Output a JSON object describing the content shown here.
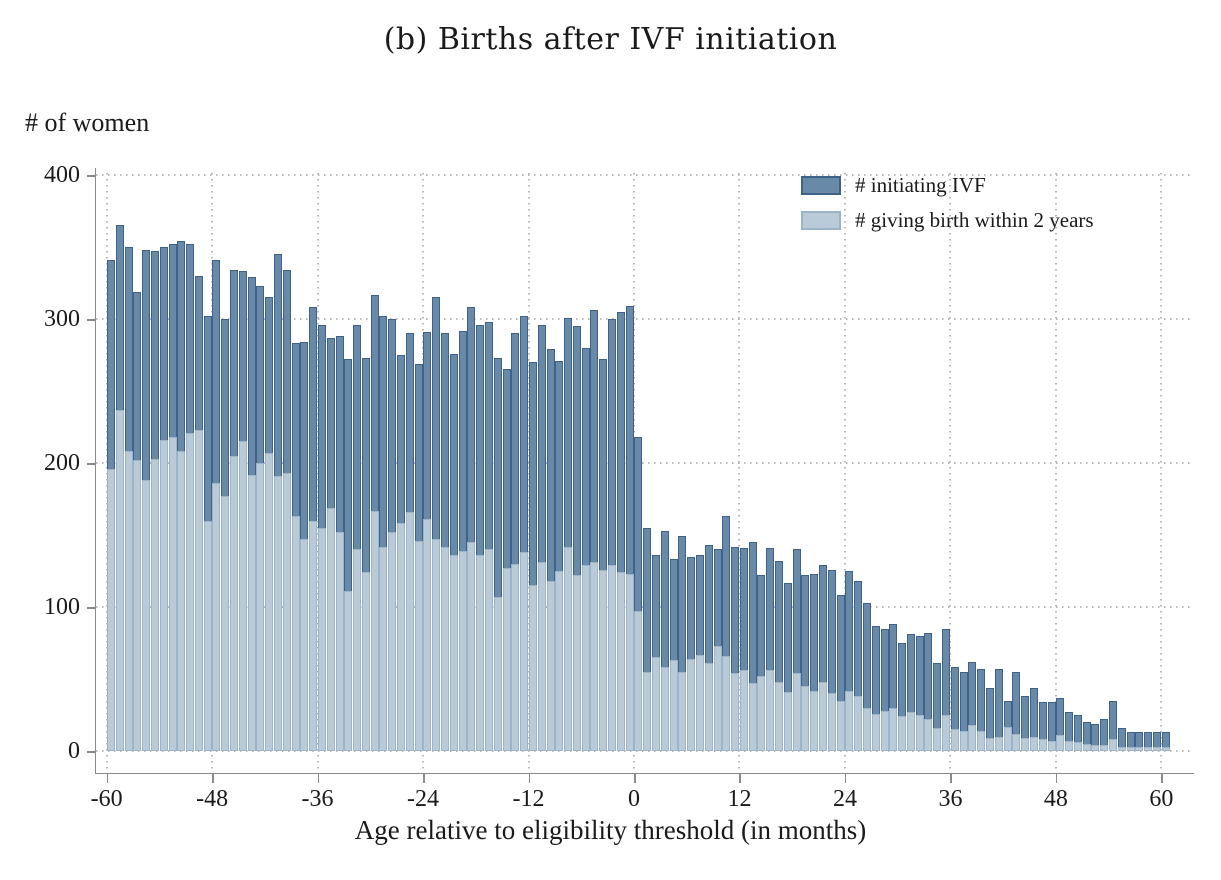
{
  "title": "(b) Births after IVF initiation",
  "y_axis": {
    "label": "# of women",
    "ticks": [
      0,
      100,
      200,
      300,
      400
    ]
  },
  "x_axis": {
    "label": "Age relative to eligibility threshold (in months)",
    "ticks": [
      -60,
      -48,
      -36,
      -24,
      -12,
      0,
      12,
      24,
      36,
      48,
      60
    ]
  },
  "legend": [
    {
      "label": "# initiating IVF",
      "color": "#6989a9",
      "border": "#3f6388"
    },
    {
      "label": "# giving birth within 2 years",
      "color": "#b9cad9",
      "border": "#9db3c7"
    }
  ],
  "colors": {
    "dark_bar_fill": "#6989a9",
    "dark_bar_border": "#3f6388",
    "light_bar_fill": "#b9cad9",
    "light_bar_border": "#9db3c7",
    "axis_line": "#8a8a8a",
    "grid_dots": "#b8b8b8",
    "text": "#1a1a1a",
    "background": "#ffffff"
  },
  "chart_data": {
    "type": "bar",
    "title": "(b) Births after IVF initiation",
    "xlabel": "Age relative to eligibility threshold (in months)",
    "ylabel": "# of women",
    "ylim": [
      0,
      400
    ],
    "xlim": [
      -61,
      64
    ],
    "grid": "dotted",
    "legend_position": "top-right",
    "overlay": true,
    "bar_width_months": 1,
    "x": [
      -60,
      -59,
      -58,
      -57,
      -56,
      -55,
      -54,
      -53,
      -52,
      -51,
      -50,
      -49,
      -48,
      -47,
      -46,
      -45,
      -44,
      -43,
      -42,
      -41,
      -40,
      -39,
      -38,
      -37,
      -36,
      -35,
      -34,
      -33,
      -32,
      -31,
      -30,
      -29,
      -28,
      -27,
      -26,
      -25,
      -24,
      -23,
      -22,
      -21,
      -20,
      -19,
      -18,
      -17,
      -16,
      -15,
      -14,
      -13,
      -12,
      -11,
      -10,
      -9,
      -8,
      -7,
      -6,
      -5,
      -4,
      -3,
      -2,
      -1,
      0,
      1,
      2,
      3,
      4,
      5,
      6,
      7,
      8,
      9,
      10,
      11,
      12,
      13,
      14,
      15,
      16,
      17,
      18,
      19,
      20,
      21,
      22,
      23,
      24,
      25,
      26,
      27,
      28,
      29,
      30,
      31,
      32,
      33,
      34,
      35,
      36,
      37,
      38,
      39,
      40,
      41,
      42,
      43,
      44,
      45,
      46,
      47,
      48,
      49,
      50,
      51,
      52,
      53,
      54,
      55,
      56,
      57,
      58,
      59,
      60
    ],
    "series": [
      {
        "name": "# initiating IVF",
        "values": [
          341,
          365,
          350,
          319,
          348,
          347,
          350,
          352,
          354,
          352,
          330,
          302,
          341,
          300,
          334,
          333,
          329,
          323,
          315,
          345,
          334,
          283,
          284,
          308,
          296,
          287,
          288,
          272,
          296,
          273,
          317,
          302,
          300,
          275,
          290,
          269,
          291,
          315,
          290,
          276,
          292,
          308,
          296,
          298,
          273,
          265,
          290,
          302,
          270,
          296,
          279,
          271,
          301,
          295,
          280,
          306,
          272,
          300,
          305,
          309,
          218,
          155,
          136,
          153,
          133,
          149,
          135,
          136,
          143,
          140,
          163,
          142,
          141,
          145,
          122,
          141,
          132,
          117,
          140,
          122,
          123,
          129,
          126,
          108,
          125,
          118,
          103,
          87,
          85,
          88,
          75,
          81,
          80,
          82,
          61,
          85,
          58,
          55,
          62,
          57,
          44,
          57,
          35,
          55,
          38,
          44,
          34,
          34,
          37,
          27,
          25,
          20,
          19,
          22,
          35,
          16,
          13,
          13,
          13,
          13,
          13
        ]
      },
      {
        "name": "# giving birth within 2 years",
        "values": [
          196,
          237,
          208,
          202,
          188,
          203,
          216,
          218,
          208,
          221,
          223,
          160,
          186,
          177,
          205,
          215,
          192,
          200,
          207,
          191,
          193,
          163,
          147,
          160,
          155,
          169,
          152,
          111,
          140,
          124,
          167,
          142,
          152,
          158,
          166,
          146,
          161,
          147,
          142,
          136,
          139,
          145,
          136,
          140,
          107,
          127,
          130,
          138,
          115,
          131,
          118,
          125,
          142,
          122,
          129,
          131,
          126,
          129,
          124,
          123,
          97,
          55,
          65,
          58,
          63,
          55,
          64,
          67,
          61,
          73,
          66,
          54,
          56,
          47,
          52,
          56,
          48,
          41,
          54,
          45,
          42,
          48,
          40,
          35,
          42,
          38,
          30,
          26,
          28,
          30,
          24,
          27,
          25,
          22,
          16,
          25,
          15,
          14,
          18,
          14,
          9,
          10,
          17,
          12,
          9,
          10,
          8,
          7,
          11,
          7,
          6,
          5,
          4,
          4,
          8,
          3,
          3,
          3,
          3,
          3,
          3
        ]
      }
    ]
  }
}
